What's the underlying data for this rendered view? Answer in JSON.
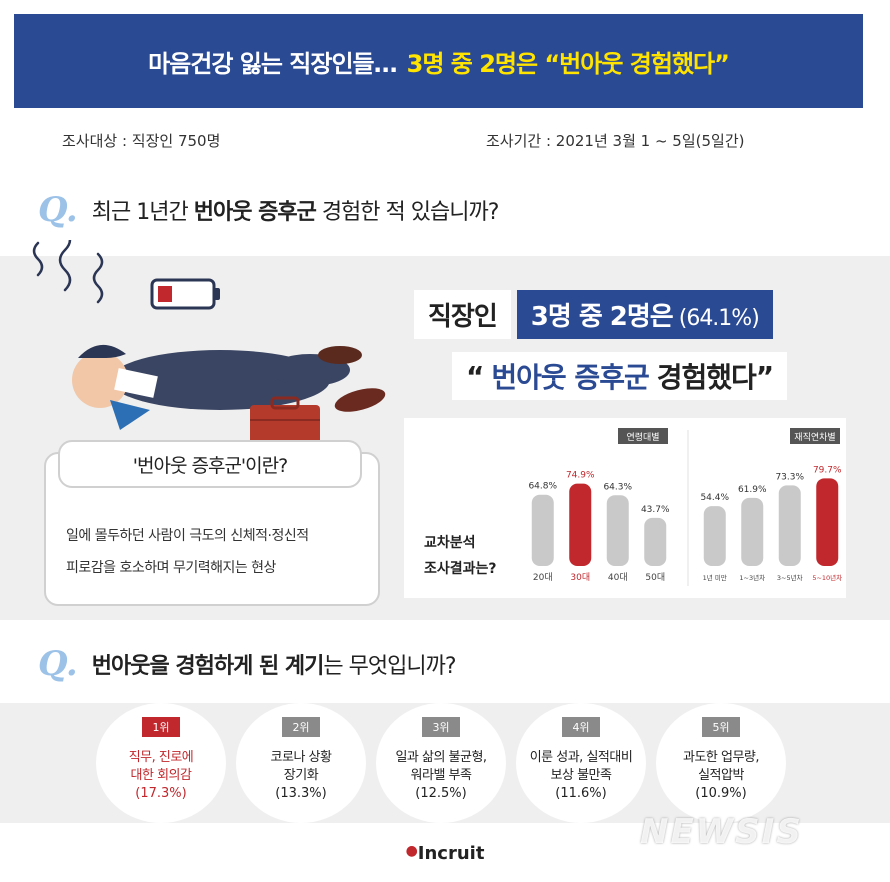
{
  "header": {
    "title_main": "마음건강 잃는 직장인들…",
    "title_highlight": "3명 중 2명은 “번아웃 경험했다”"
  },
  "survey": {
    "target": "조사대상 : 직장인 750명",
    "period": "조사기간 : 2021년 3월 1 ~ 5일(5일간)"
  },
  "question1": {
    "mark": "Q.",
    "text_pre": "최근 1년간 ",
    "text_bold": "번아웃 증후군",
    "text_post": " 경험한 적 있습니까?"
  },
  "result": {
    "line1_white": "직장인",
    "line1_blue": "3명 중 2명은",
    "line1_pct": "(64.1%)",
    "line2_quote_open": "“",
    "line2_blue": "번아웃 증후군",
    "line2_dark": "경험했다",
    "line2_quote_close": "”"
  },
  "definition": {
    "title": "'번아웃 증후군'이란?",
    "line1": "일에 몰두하던 사람이 극도의 신체적·정신적",
    "line2": "피로감을 호소하며 무기력해지는 현상"
  },
  "cross_analysis": {
    "line1": "교차분석",
    "line2": "조사결과는?"
  },
  "chart_data": [
    {
      "type": "bar",
      "legend": "연령대별",
      "categories": [
        "20대",
        "30대",
        "40대",
        "50대"
      ],
      "values": [
        64.8,
        74.9,
        64.3,
        43.7
      ],
      "value_labels": [
        "64.8%",
        "74.9%",
        "64.3%",
        "43.7%"
      ],
      "highlight_index": 1,
      "ylim": [
        0,
        100
      ]
    },
    {
      "type": "bar",
      "legend": "재직연차별",
      "categories": [
        "1년 미만",
        "1~3년차",
        "3~5년차",
        "5~10년차"
      ],
      "values": [
        54.4,
        61.9,
        73.3,
        79.7
      ],
      "value_labels": [
        "54.4%",
        "61.9%",
        "73.3%",
        "79.7%"
      ],
      "highlight_index": 3,
      "ylim": [
        0,
        100
      ]
    }
  ],
  "question2": {
    "mark": "Q.",
    "text_bold": "번아웃을 경험하게 된 계기",
    "text_post": "는 무엇입니까?"
  },
  "ranking": [
    {
      "badge": "1위",
      "label": "직무, 진로에\n대한 회의감",
      "pct": "(17.3%)"
    },
    {
      "badge": "2위",
      "label": "코로나 상황\n장기화",
      "pct": "(13.3%)"
    },
    {
      "badge": "3위",
      "label": "일과 삶의 불균형,\n워라밸 부족",
      "pct": "(12.5%)"
    },
    {
      "badge": "4위",
      "label": "이룬 성과, 실적대비\n보상 불만족",
      "pct": "(11.6%)"
    },
    {
      "badge": "5위",
      "label": "과도한 업무량,\n실적압박",
      "pct": "(10.9%)"
    }
  ],
  "brand": "Incruit",
  "watermark": "NEWSIS",
  "colors": {
    "header_blue": "#2b4a94",
    "highlight_yellow": "#ffe400",
    "bar_gray": "#c9c9c9",
    "bar_red": "#c0282d",
    "question_mark": "#9cc2e8"
  },
  "icons": {
    "illustration": "exhausted-worker-illustration",
    "battery": "low-battery-icon"
  }
}
